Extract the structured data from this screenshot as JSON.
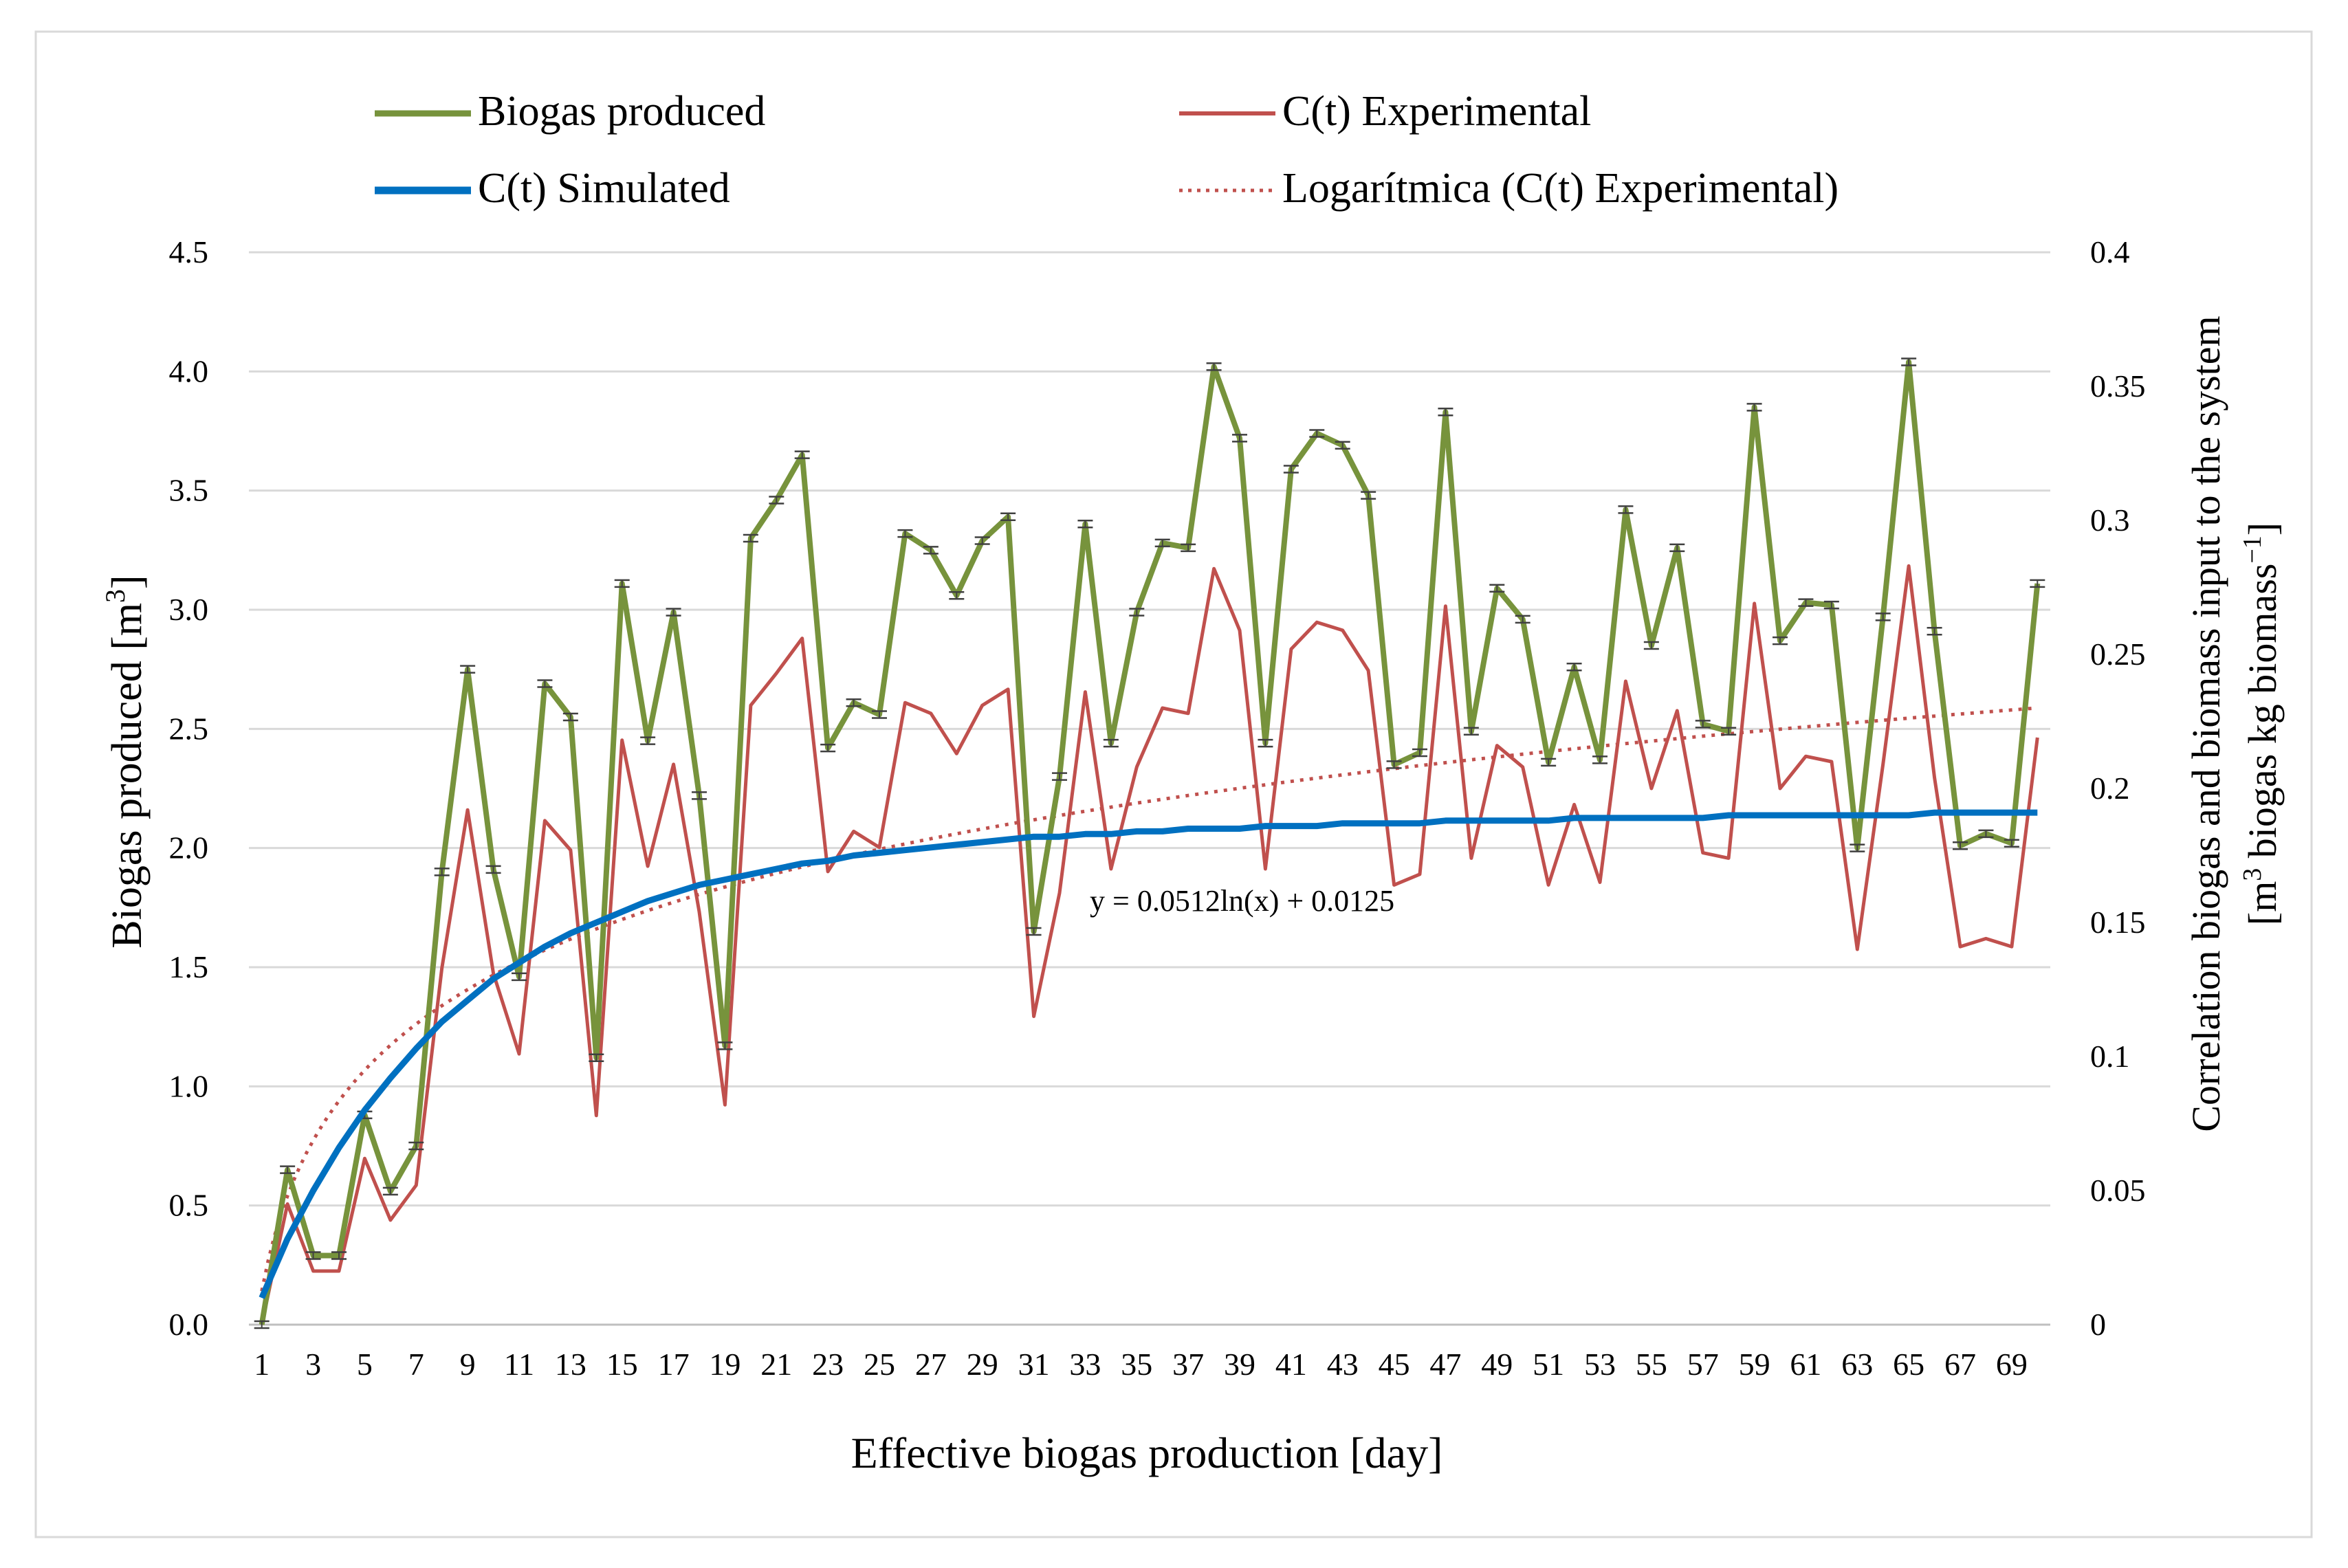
{
  "chart_data": {
    "type": "line",
    "title": "",
    "xlabel": "Effective biogas production [day]",
    "ylabel": "Biogas produced [m",
    "ylabel_sup": "3",
    "ylabel_end": "]",
    "y2label_line1": "Correlation biogas and biomass input to the system",
    "y2label_line2_a": "[m",
    "y2label_line2_sup1": "3",
    "y2label_line2_b": " biogas kg biomass",
    "y2label_line2_sup2": "−1",
    "y2label_line2_c": "]",
    "ylim": [
      0,
      4.5
    ],
    "y2lim": [
      0,
      0.4
    ],
    "yticks": [
      "0.0",
      "0.5",
      "1.0",
      "1.5",
      "2.0",
      "2.5",
      "3.0",
      "3.5",
      "4.0",
      "4.5"
    ],
    "y2ticks": [
      "0",
      "0.05",
      "0.1",
      "0.15",
      "0.2",
      "0.25",
      "0.3",
      "0.35",
      "0.4"
    ],
    "xticks": [
      "1",
      "3",
      "5",
      "7",
      "9",
      "11",
      "13",
      "15",
      "17",
      "19",
      "21",
      "23",
      "25",
      "27",
      "29",
      "31",
      "33",
      "35",
      "37",
      "39",
      "41",
      "43",
      "45",
      "47",
      "49",
      "51",
      "53",
      "55",
      "57",
      "59",
      "61",
      "63",
      "65",
      "67",
      "69"
    ],
    "legend": {
      "biogas": "Biogas produced",
      "experimental": "C(t) Experimental",
      "simulated": "C(t) Simulated",
      "trend": "Logarítmica (C(t) Experimental)"
    },
    "equation": "y = 0.0512ln(x) + 0.0125",
    "colors": {
      "biogas": "#77933C",
      "experimental": "#C0504D",
      "simulated": "#0070C0",
      "trend": "#C0504D"
    },
    "biogas_produced": [
      0.0,
      0.65,
      0.29,
      0.29,
      0.88,
      0.56,
      0.75,
      1.9,
      2.75,
      1.91,
      1.46,
      2.69,
      2.55,
      1.12,
      3.11,
      2.45,
      2.99,
      2.22,
      1.17,
      3.3,
      3.46,
      3.65,
      2.42,
      2.61,
      2.56,
      3.32,
      3.25,
      3.06,
      3.29,
      3.39,
      1.65,
      2.3,
      3.36,
      2.44,
      2.99,
      3.28,
      3.26,
      4.02,
      3.72,
      2.44,
      3.59,
      3.74,
      3.69,
      3.48,
      2.35,
      2.4,
      3.83,
      2.49,
      3.09,
      2.96,
      2.36,
      2.76,
      2.37,
      3.42,
      2.85,
      3.26,
      2.52,
      2.49,
      3.85,
      2.87,
      3.03,
      3.02,
      2.0,
      2.97,
      4.04,
      2.91,
      2.01,
      2.06,
      2.02,
      3.11
    ],
    "ct_experimental": [
      0.0,
      0.045,
      0.02,
      0.02,
      0.062,
      0.039,
      0.052,
      0.133,
      0.192,
      0.131,
      0.101,
      0.188,
      0.177,
      0.078,
      0.218,
      0.171,
      0.209,
      0.154,
      0.082,
      0.231,
      0.243,
      0.256,
      0.169,
      0.184,
      0.178,
      0.232,
      0.228,
      0.213,
      0.231,
      0.237,
      0.115,
      0.161,
      0.236,
      0.17,
      0.208,
      0.23,
      0.228,
      0.282,
      0.259,
      0.17,
      0.252,
      0.262,
      0.259,
      0.244,
      0.164,
      0.168,
      0.268,
      0.174,
      0.216,
      0.208,
      0.164,
      0.194,
      0.165,
      0.24,
      0.2,
      0.229,
      0.176,
      0.174,
      0.269,
      0.2,
      0.212,
      0.21,
      0.14,
      0.209,
      0.283,
      0.204,
      0.141,
      0.144,
      0.141,
      0.219
    ],
    "ct_simulated": [
      0.01,
      0.032,
      0.05,
      0.066,
      0.08,
      0.092,
      0.103,
      0.113,
      0.121,
      0.129,
      0.135,
      0.141,
      0.146,
      0.15,
      0.154,
      0.158,
      0.161,
      0.164,
      0.166,
      0.168,
      0.17,
      0.172,
      0.173,
      0.175,
      0.176,
      0.177,
      0.178,
      0.179,
      0.18,
      0.181,
      0.182,
      0.182,
      0.183,
      0.183,
      0.184,
      0.184,
      0.185,
      0.185,
      0.185,
      0.186,
      0.186,
      0.186,
      0.187,
      0.187,
      0.187,
      0.187,
      0.188,
      0.188,
      0.188,
      0.188,
      0.188,
      0.189,
      0.189,
      0.189,
      0.189,
      0.189,
      0.189,
      0.19,
      0.19,
      0.19,
      0.19,
      0.19,
      0.19,
      0.19,
      0.19,
      0.191,
      0.191,
      0.191,
      0.191,
      0.191
    ],
    "trend_coefficients": {
      "a": 0.0512,
      "b": 0.0125
    }
  }
}
